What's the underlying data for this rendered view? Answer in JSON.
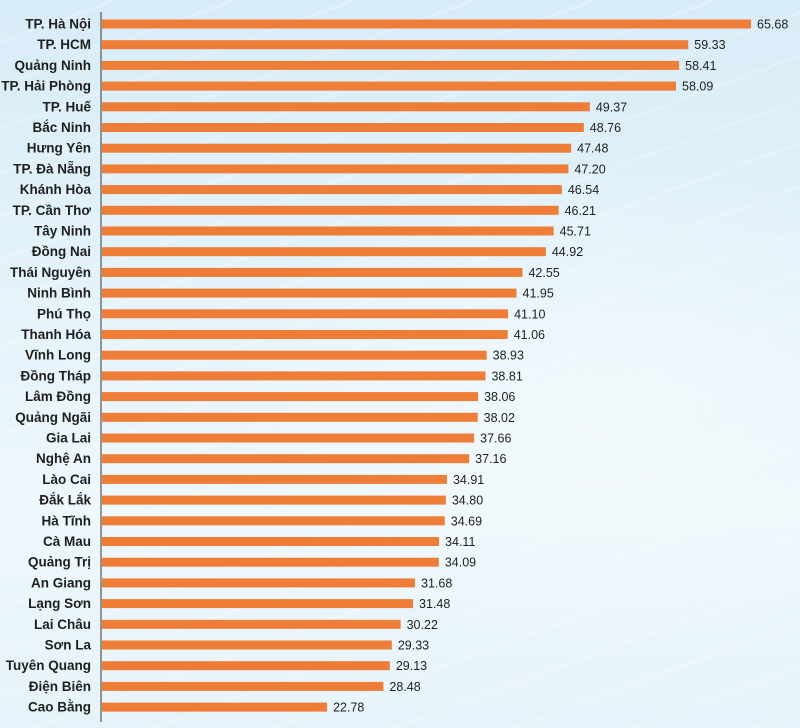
{
  "chart_data": {
    "type": "bar",
    "orientation": "horizontal",
    "title": "",
    "xlabel": "",
    "ylabel": "",
    "bar_color": "#ee7d37",
    "axis_color": "#555555",
    "grid": false,
    "xlim": [
      0,
      70
    ],
    "categories": [
      "TP. Hà Nội",
      "TP. HCM",
      "Quảng Ninh",
      "TP. Hải Phòng",
      "TP. Huế",
      "Bắc Ninh",
      "Hưng Yên",
      "TP. Đà Nẵng",
      "Khánh Hòa",
      "TP. Cần Thơ",
      "Tây Ninh",
      "Đồng Nai",
      "Thái Nguyên",
      "Ninh Bình",
      "Phú Thọ",
      "Thanh Hóa",
      "Vĩnh Long",
      "Đồng Tháp",
      "Lâm Đồng",
      "Quảng Ngãi",
      "Gia Lai",
      "Nghệ An",
      "Lào Cai",
      "Đắk Lắk",
      "Hà Tĩnh",
      "Cà Mau",
      "Quảng Trị",
      "An Giang",
      "Lạng Sơn",
      "Lai Châu",
      "Sơn La",
      "Tuyên Quang",
      "Điện Biên",
      "Cao Bằng"
    ],
    "values": [
      65.68,
      59.33,
      58.41,
      58.09,
      49.37,
      48.76,
      47.48,
      47.2,
      46.54,
      46.21,
      45.71,
      44.92,
      42.55,
      41.95,
      41.1,
      41.06,
      38.93,
      38.81,
      38.06,
      38.02,
      37.66,
      37.16,
      34.91,
      34.8,
      34.69,
      34.11,
      34.09,
      31.68,
      31.48,
      30.22,
      29.33,
      29.13,
      28.48,
      22.78
    ],
    "value_labels": [
      "65.68",
      "59.33",
      "58.41",
      "58.09",
      "49.37",
      "48.76",
      "47.48",
      "47.20",
      "46.54",
      "46.21",
      "45.71",
      "44.92",
      "42.55",
      "41.95",
      "41.10",
      "41.06",
      "38.93",
      "38.81",
      "38.06",
      "38.02",
      "37.66",
      "37.16",
      "34.91",
      "34.80",
      "34.69",
      "34.11",
      "34.09",
      "31.68",
      "31.48",
      "30.22",
      "29.33",
      "29.13",
      "28.48",
      "22.78"
    ]
  }
}
